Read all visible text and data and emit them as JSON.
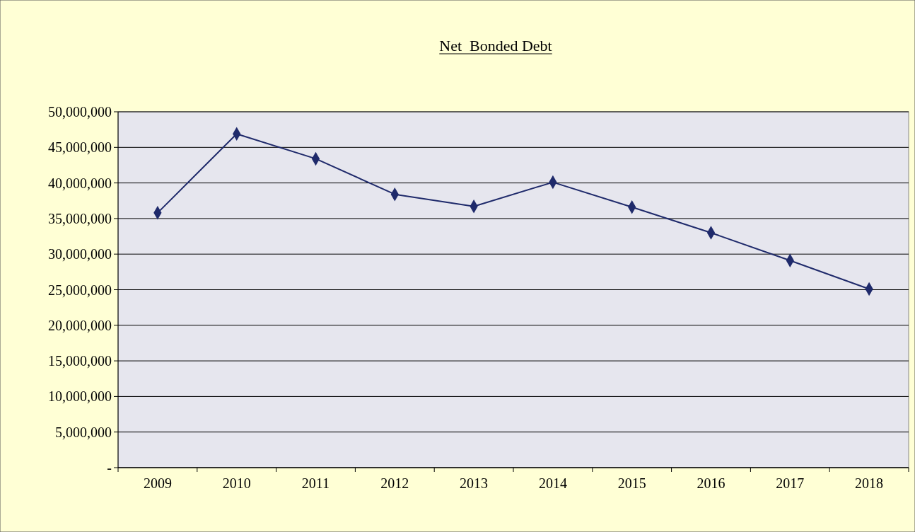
{
  "chart_data": {
    "type": "line",
    "title": "Net  Bonded Debt",
    "categories": [
      "2009",
      "2010",
      "2011",
      "2012",
      "2013",
      "2014",
      "2015",
      "2016",
      "2017",
      "2018"
    ],
    "series": [
      {
        "color": "#1f2a6b",
        "values": [
          35800000,
          46900000,
          43400000,
          38400000,
          36700000,
          40100000,
          36600000,
          33000000,
          29100000,
          25100000
        ]
      }
    ],
    "ylim": [
      0,
      50000000
    ],
    "yticks": [
      {
        "value": 0,
        "label": "-"
      },
      {
        "value": 5000000,
        "label": "5,000,000"
      },
      {
        "value": 10000000,
        "label": "10,000,000"
      },
      {
        "value": 15000000,
        "label": "15,000,000"
      },
      {
        "value": 20000000,
        "label": "20,000,000"
      },
      {
        "value": 25000000,
        "label": "25,000,000"
      },
      {
        "value": 30000000,
        "label": "30,000,000"
      },
      {
        "value": 35000000,
        "label": "35,000,000"
      },
      {
        "value": 40000000,
        "label": "40,000,000"
      },
      {
        "value": 45000000,
        "label": "45,000,000"
      },
      {
        "value": 50000000,
        "label": "50,000,000"
      }
    ],
    "grid": "y",
    "marker": "diamond",
    "line_style": "solid"
  }
}
